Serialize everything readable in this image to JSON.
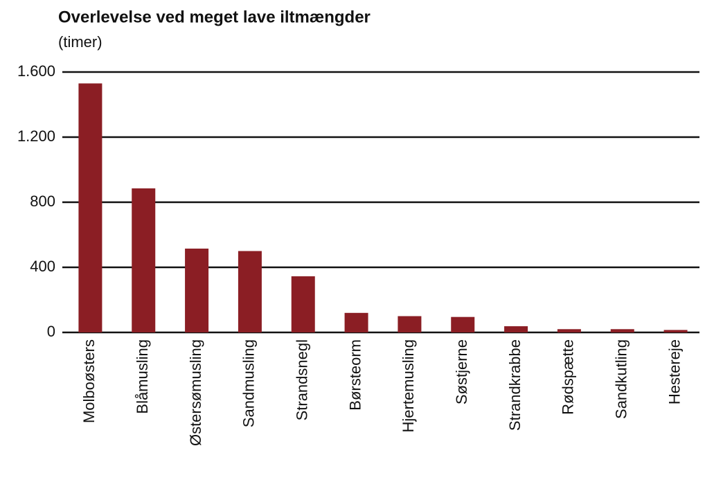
{
  "chart_data": {
    "type": "bar",
    "title": "Overlevelse ved meget lave iltmængder",
    "subtitle": "(timer)",
    "categories": [
      "Molboøsters",
      "Blåmusling",
      "Østersømusling",
      "Sandmusling",
      "Strandsnegl",
      "Børsteorm",
      "Hjertemusling",
      "Søstjerne",
      "Strandkrabbe",
      "Rødspætte",
      "Sandkutling",
      "Hestereje"
    ],
    "values": [
      1530,
      885,
      515,
      500,
      345,
      120,
      100,
      95,
      38,
      20,
      20,
      15
    ],
    "color": "#8b1e24",
    "ylim": [
      0,
      1600
    ],
    "yticks": [
      0,
      400,
      800,
      {
        "value": 1200,
        "label": "1.200"
      },
      {
        "value": 1600,
        "label": "1.600"
      }
    ],
    "grid": true
  }
}
